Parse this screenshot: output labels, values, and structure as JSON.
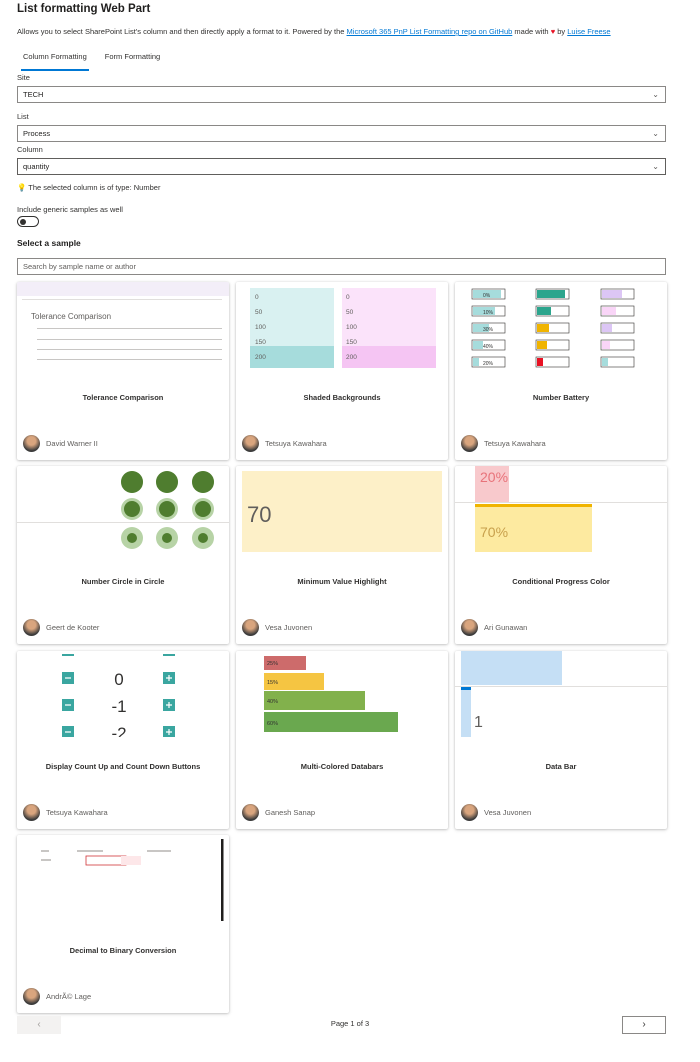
{
  "header": {
    "title": "List formatting Web Part",
    "description_prefix": "Allows you to select SharePoint List's column and then directly apply a format to it. Powered by the",
    "repo_link": "Microsoft 365 PnP List Formatting repo on GitHub",
    "made_with": "made with",
    "by": "by",
    "author_link": "Luise Freese"
  },
  "tabs": [
    {
      "label": "Column Formatting"
    },
    {
      "label": "Form Formatting"
    }
  ],
  "form": {
    "site_label": "Site",
    "site_value": "TECH",
    "list_label": "List",
    "list_value": "Process",
    "column_label": "Column",
    "column_value": "quantity",
    "info_text": "The selected column is of type: Number",
    "toggle_label": "Include generic samples as well",
    "section_title": "Select a sample",
    "search_placeholder": "Search by sample name or author"
  },
  "samples": [
    {
      "title": "Tolerance Comparison",
      "author": "David Warner II"
    },
    {
      "title": "Shaded Backgrounds",
      "author": "Tetsuya Kawahara"
    },
    {
      "title": "Number Battery",
      "author": "Tetsuya Kawahara"
    },
    {
      "title": "Number Circle in Circle",
      "author": "Geert de Kooter"
    },
    {
      "title": "Minimum Value Highlight",
      "author": "Vesa Juvonen"
    },
    {
      "title": "Conditional Progress Color",
      "author": "Ari Gunawan"
    },
    {
      "title": "Display Count Up and Count Down Buttons",
      "author": "Tetsuya Kawahara"
    },
    {
      "title": "Multi-Colored Databars",
      "author": "Ganesh Sanap"
    },
    {
      "title": "Data Bar",
      "author": "Vesa Juvonen"
    },
    {
      "title": "Decimal to Binary Conversion",
      "author": "AndrÃ© Lage"
    }
  ],
  "previews": {
    "tolerance_heading": "Tolerance Comparison",
    "shaded_values": [
      "0",
      "50",
      "100",
      "150",
      "200"
    ],
    "battery_labels": [
      "0%",
      "10%",
      "30%",
      "40%",
      "20%"
    ],
    "min_value": "70",
    "progress_top": "20%",
    "progress_main": "70%",
    "count_values": [
      "0",
      "-1",
      "-2"
    ],
    "databars": [
      "25%",
      "15%",
      "40%",
      "60%"
    ],
    "databar_value": "1"
  },
  "pager": {
    "prev_icon": "chevron-left-icon",
    "next_icon": "chevron-right-icon",
    "prev": "‹",
    "next": "›",
    "text": "Page 1 of 3"
  },
  "colors": {
    "accent": "#0078d4",
    "teal": "#b2e0e0",
    "pink": "#f9d5f7",
    "green": "#5a8a3a"
  }
}
